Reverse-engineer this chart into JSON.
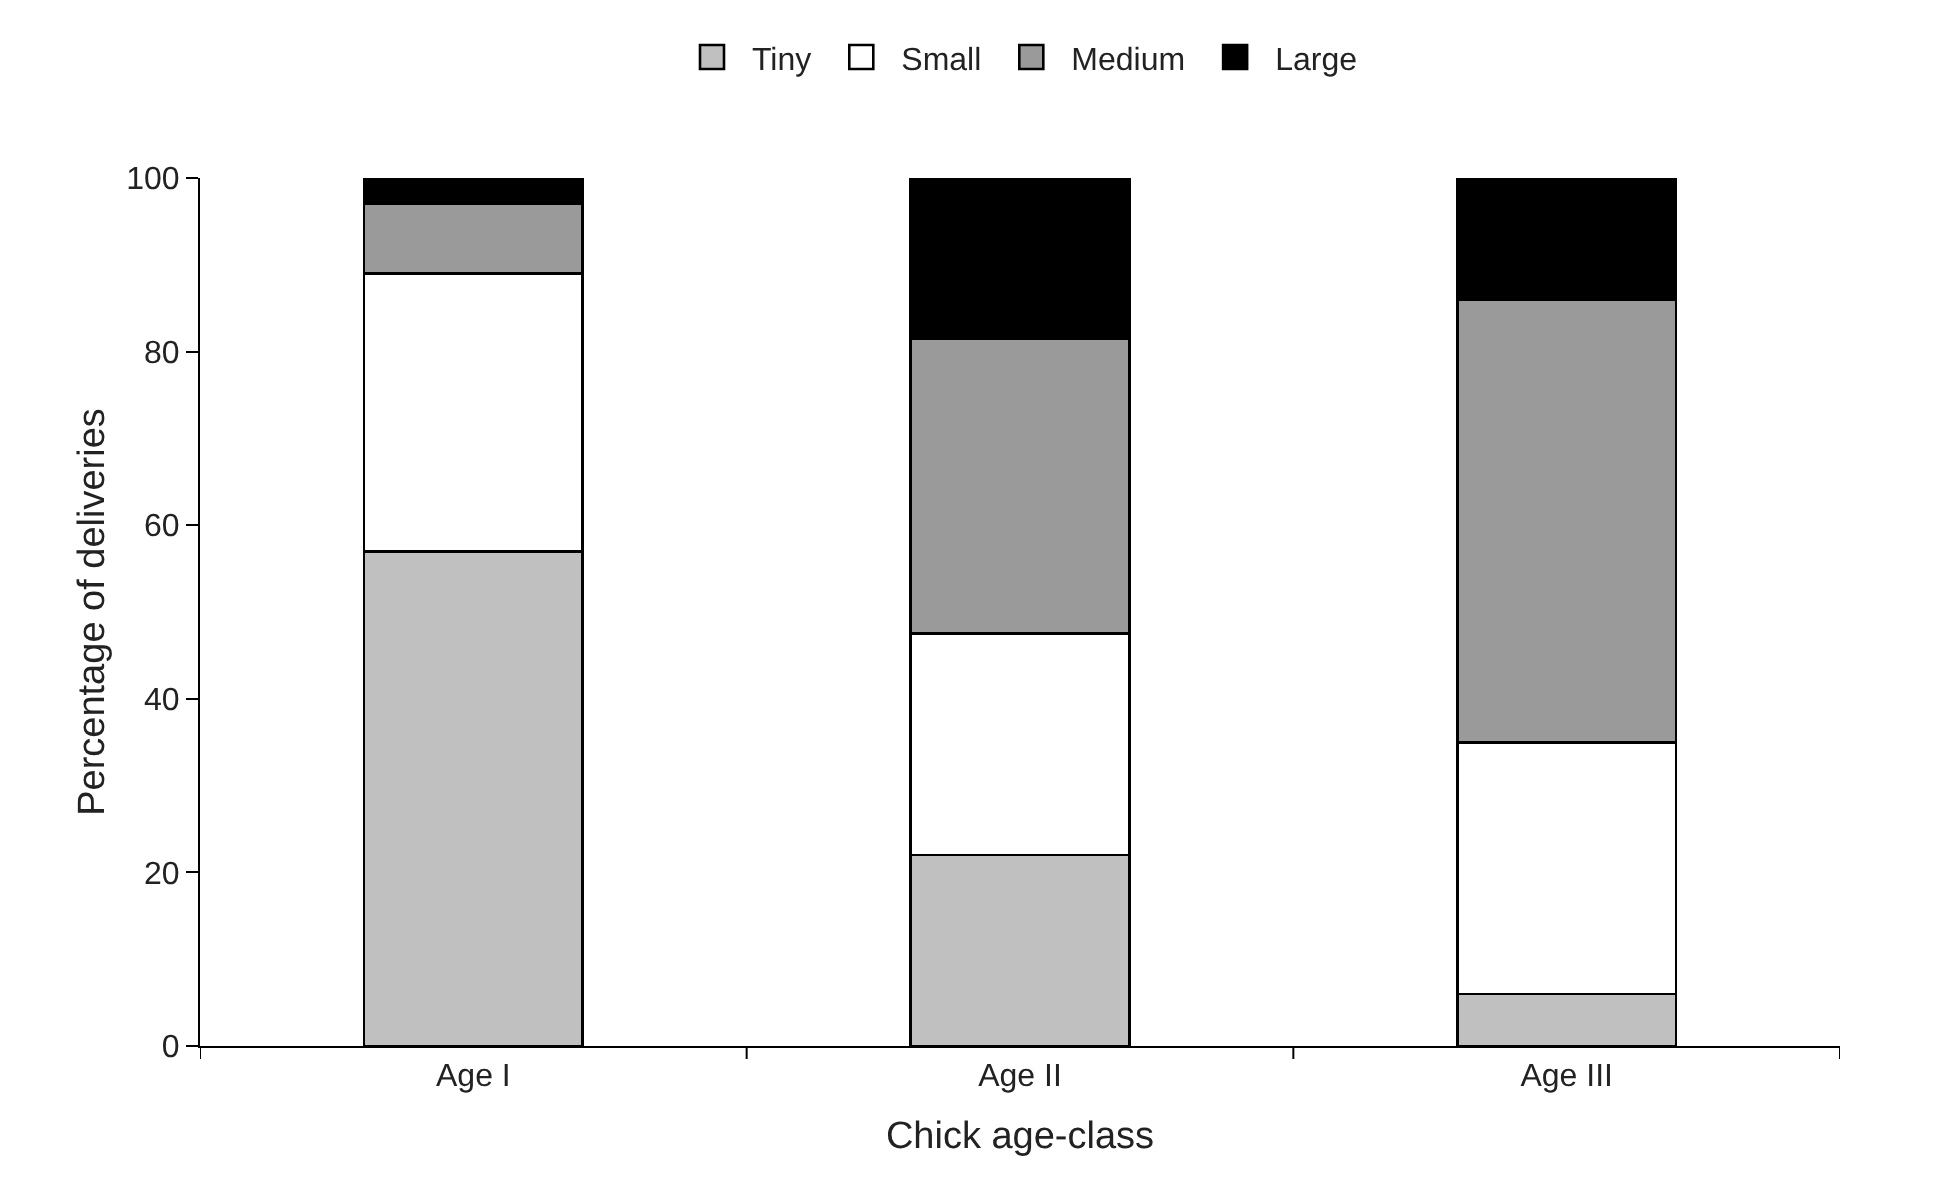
{
  "chart_data": {
    "type": "bar",
    "stacked": true,
    "xlabel": "Chick age-class",
    "ylabel": "Percentage of deliveries",
    "categories": [
      "Age I",
      "Age II",
      "Age III"
    ],
    "series": [
      {
        "name": "Tiny",
        "color": "#c0c0c0",
        "values": [
          57,
          22,
          6
        ]
      },
      {
        "name": "Small",
        "color": "#ffffff",
        "values": [
          32,
          25.5,
          29
        ]
      },
      {
        "name": "Medium",
        "color": "#9a9a9a",
        "values": [
          8,
          34,
          51
        ]
      },
      {
        "name": "Large",
        "color": "#000000",
        "values": [
          3,
          18.5,
          14
        ]
      }
    ],
    "ylim": [
      0,
      100
    ],
    "yticks": [
      0,
      20,
      40,
      60,
      80,
      100
    ],
    "grid": false,
    "legend": "top"
  }
}
